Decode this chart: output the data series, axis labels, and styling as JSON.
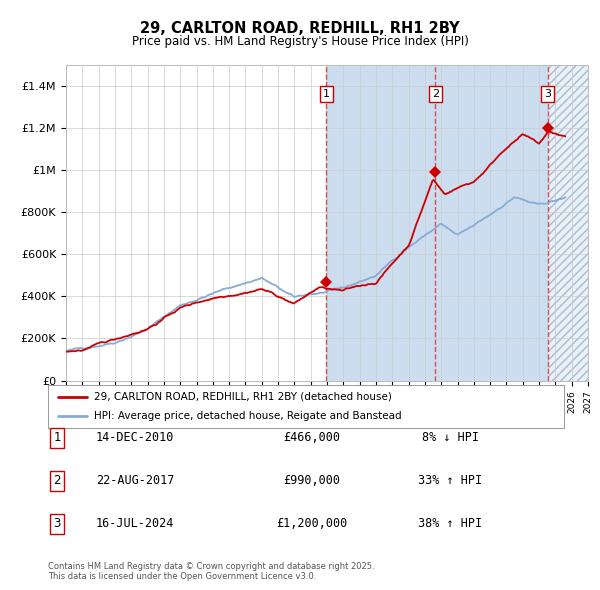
{
  "title": "29, CARLTON ROAD, REDHILL, RH1 2BY",
  "subtitle": "Price paid vs. HM Land Registry's House Price Index (HPI)",
  "ylim": [
    0,
    1500000
  ],
  "yticks": [
    0,
    200000,
    400000,
    600000,
    800000,
    1000000,
    1200000,
    1400000
  ],
  "ytick_labels": [
    "£0",
    "£200K",
    "£400K",
    "£600K",
    "£800K",
    "£1M",
    "£1.2M",
    "£1.4M"
  ],
  "x_start_year": 1995,
  "x_end_year": 2027,
  "color_price": "#cc0000",
  "color_hpi": "#88aad4",
  "sale_years": [
    2010.95,
    2017.64,
    2024.54
  ],
  "sale_prices": [
    466000,
    990000,
    1200000
  ],
  "sale_labels": [
    "1",
    "2",
    "3"
  ],
  "legend_price_label": "29, CARLTON ROAD, REDHILL, RH1 2BY (detached house)",
  "legend_hpi_label": "HPI: Average price, detached house, Reigate and Banstead",
  "table_rows": [
    {
      "num": "1",
      "date": "14-DEC-2010",
      "price": "£466,000",
      "hpi": "8% ↓ HPI"
    },
    {
      "num": "2",
      "date": "22-AUG-2017",
      "price": "£990,000",
      "hpi": "33% ↑ HPI"
    },
    {
      "num": "3",
      "date": "16-JUL-2024",
      "price": "£1,200,000",
      "hpi": "38% ↑ HPI"
    }
  ],
  "footnote": "Contains HM Land Registry data © Crown copyright and database right 2025.\nThis data is licensed under the Open Government Licence v3.0.",
  "bg_color": "#ffffff",
  "grid_color": "#cccccc",
  "shade_color": "#ccddf0",
  "hatch_color": "#aabbd0"
}
